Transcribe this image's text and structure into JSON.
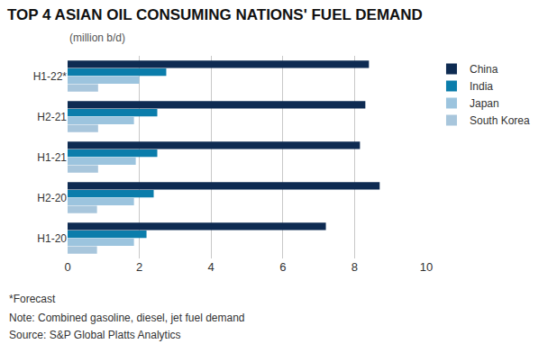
{
  "chart_data": {
    "type": "bar",
    "orientation": "horizontal",
    "title": "TOP 4 ASIAN OIL CONSUMING NATIONS' FUEL DEMAND",
    "subtitle": "(million b/d)",
    "categories": [
      "H1-22*",
      "H2-21",
      "H1-21",
      "H2-20",
      "H1-20"
    ],
    "series": [
      {
        "name": "China",
        "color": "#0e2b52",
        "values": [
          8.4,
          8.3,
          8.15,
          8.7,
          7.2
        ]
      },
      {
        "name": "India",
        "color": "#0b7dab",
        "values": [
          2.75,
          2.5,
          2.5,
          2.4,
          2.2
        ]
      },
      {
        "name": "Japan",
        "color": "#9cc4de",
        "values": [
          2.0,
          1.85,
          1.9,
          1.85,
          1.85
        ]
      },
      {
        "name": "South Korea",
        "color": "#a8c6dc",
        "values": [
          0.85,
          0.85,
          0.85,
          0.82,
          0.82
        ]
      }
    ],
    "xlim": [
      0,
      10
    ],
    "xticks": [
      0,
      2,
      4,
      6,
      8,
      10
    ],
    "grid": true,
    "legend": "upper right",
    "annotations": [
      "*Forecast",
      "Note: Combined gasoline, diesel, jet fuel demand",
      "Source: S&P Global Platts Analytics"
    ]
  }
}
